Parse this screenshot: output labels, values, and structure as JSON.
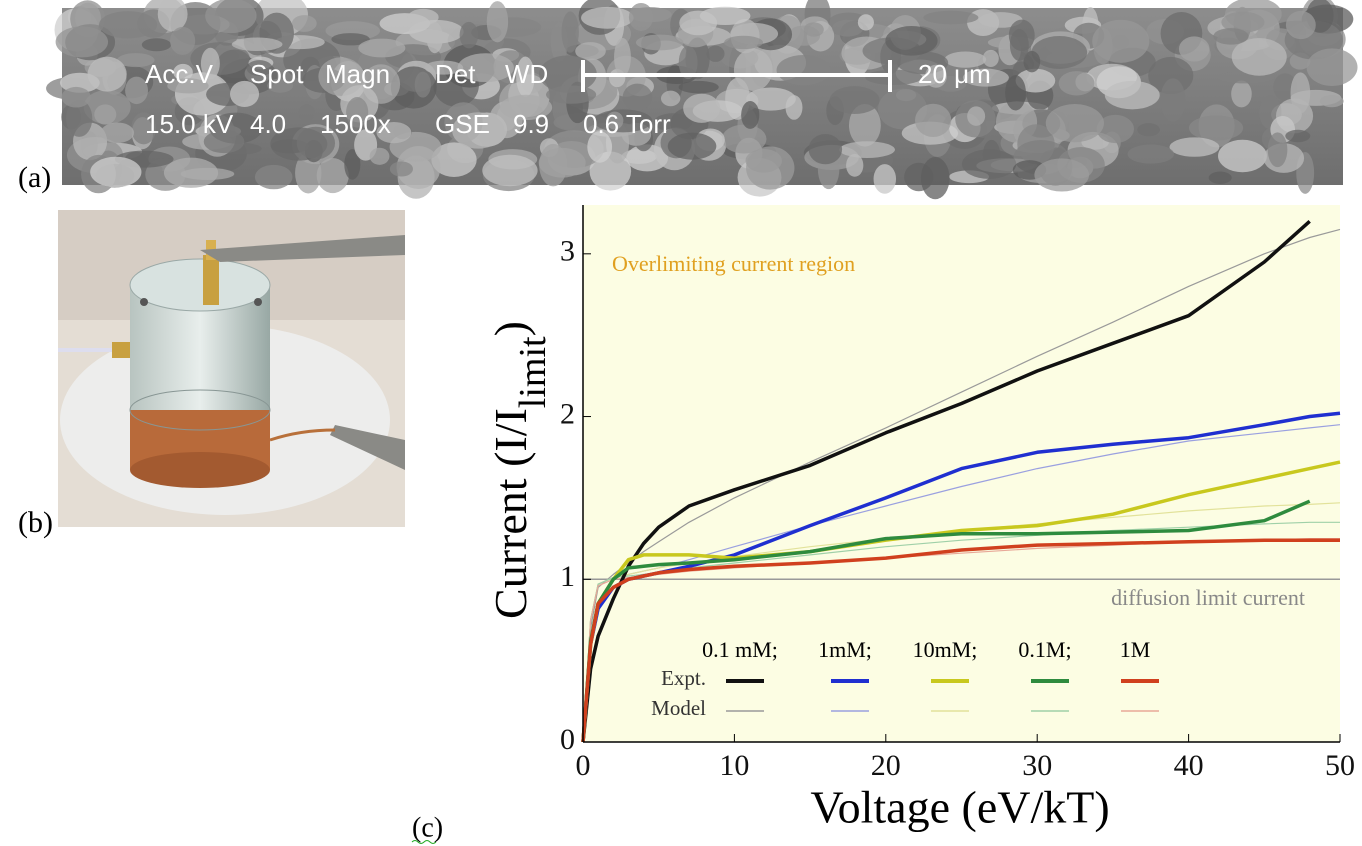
{
  "panels": {
    "a": {
      "label": "(a)",
      "headers": [
        "Acc.V",
        "Spot",
        "Magn",
        "Det",
        "WD"
      ],
      "values": [
        "15.0 kV",
        "4.0",
        "1500x",
        "GSE",
        "9.9",
        "0.6 Torr"
      ],
      "scale_bar": "20 μm"
    },
    "b": {
      "label": "(b)"
    }
  },
  "chart_data": {
    "type": "line",
    "panel_label": "(c)",
    "xlabel": "Voltage (eV/kT)",
    "ylabel": "Current (I/I",
    "ylabel_sub": "limit",
    "ylabel_end": ")",
    "annotation": "Overlimiting current region",
    "reference_value": 1,
    "reference_label": "diffusion limit current",
    "legend_rows": [
      "Expt.",
      "Model"
    ],
    "x": [
      0,
      0.5,
      1,
      2,
      3,
      4,
      5,
      7,
      10,
      15,
      20,
      25,
      30,
      35,
      40,
      45,
      48,
      50
    ],
    "xlim": [
      0,
      50
    ],
    "ylim": [
      0,
      3.3
    ],
    "xticks": [
      0,
      10,
      20,
      30,
      40,
      50
    ],
    "yticks": [
      0,
      1,
      2,
      3
    ],
    "series": [
      {
        "name": "0.1 mM;",
        "color": "#111111",
        "model_color": "#9a9a9a",
        "values": [
          0,
          0.45,
          0.65,
          0.88,
          1.08,
          1.22,
          1.32,
          1.45,
          1.55,
          1.7,
          1.9,
          2.08,
          2.28,
          2.45,
          2.62,
          2.95,
          3.2,
          null
        ],
        "model": [
          0,
          0.7,
          0.95,
          1.03,
          1.1,
          1.17,
          1.23,
          1.35,
          1.5,
          1.72,
          1.93,
          2.15,
          2.37,
          2.58,
          2.8,
          3.0,
          3.1,
          3.15
        ]
      },
      {
        "name": "1mM;",
        "color": "#1f2fd0",
        "model_color": "#9aa0e0",
        "values": [
          0,
          0.6,
          0.82,
          0.95,
          1.0,
          1.02,
          1.04,
          1.08,
          1.15,
          1.33,
          1.5,
          1.68,
          1.78,
          1.83,
          1.87,
          1.95,
          2.0,
          2.02
        ],
        "model": [
          0,
          0.75,
          0.97,
          1.01,
          1.03,
          1.05,
          1.07,
          1.12,
          1.2,
          1.33,
          1.45,
          1.57,
          1.68,
          1.77,
          1.85,
          1.9,
          1.93,
          1.95
        ]
      },
      {
        "name": "10mM;",
        "color": "#c8c81e",
        "model_color": "#e2e29a",
        "values": [
          0,
          0.6,
          0.85,
          1.0,
          1.12,
          1.15,
          1.15,
          1.15,
          1.13,
          1.17,
          1.24,
          1.3,
          1.33,
          1.4,
          1.52,
          1.62,
          1.68,
          1.72
        ],
        "model": [
          0,
          0.75,
          0.97,
          1.01,
          1.03,
          1.05,
          1.07,
          1.1,
          1.14,
          1.2,
          1.25,
          1.3,
          1.34,
          1.38,
          1.42,
          1.45,
          1.46,
          1.47
        ]
      },
      {
        "name": "0.1M;",
        "color": "#2e8b3e",
        "model_color": "#9fd0a8",
        "values": [
          0,
          0.62,
          0.85,
          1.0,
          1.07,
          1.08,
          1.09,
          1.1,
          1.12,
          1.17,
          1.25,
          1.28,
          1.28,
          1.29,
          1.3,
          1.36,
          1.48,
          null
        ],
        "model": [
          0,
          0.75,
          0.97,
          1.01,
          1.02,
          1.03,
          1.04,
          1.07,
          1.1,
          1.15,
          1.2,
          1.24,
          1.27,
          1.3,
          1.32,
          1.34,
          1.35,
          1.35
        ]
      },
      {
        "name": "1M",
        "color": "#d0401e",
        "model_color": "#e8a898",
        "values": [
          0,
          0.6,
          0.85,
          0.95,
          1.0,
          1.02,
          1.04,
          1.06,
          1.08,
          1.1,
          1.13,
          1.18,
          1.21,
          1.22,
          1.23,
          1.24,
          1.24,
          1.24
        ],
        "model": [
          0,
          0.75,
          0.96,
          1.0,
          1.01,
          1.02,
          1.03,
          1.05,
          1.07,
          1.1,
          1.13,
          1.16,
          1.19,
          1.21,
          1.23,
          1.24,
          1.25,
          1.25
        ]
      }
    ]
  }
}
